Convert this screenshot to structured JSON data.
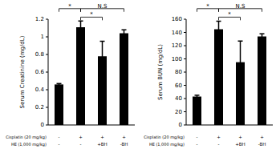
{
  "chart_data": [
    {
      "type": "bar",
      "ylabel": "Serum Creatinine (mg/dL)",
      "categories": [
        null,
        null,
        null,
        null
      ],
      "values": [
        0.46,
        1.11,
        0.78,
        1.04
      ],
      "errors": [
        0.01,
        0.07,
        0.17,
        0.04
      ],
      "color": "#000000",
      "ylim": [
        0,
        1.2
      ],
      "yticks": [
        0,
        0.2,
        0.4,
        0.6,
        0.8,
        1,
        1.2
      ],
      "treatments": [
        {
          "label": "Cisplatin (20 mg/kg)",
          "values": [
            "-",
            "+",
            "+",
            "+"
          ]
        },
        {
          "label": "HE (1,000 mg/kg)",
          "values": [
            "-",
            "-",
            "+BH",
            "-BH"
          ]
        }
      ],
      "comparisons": [
        {
          "from": 0,
          "to": 1,
          "label": "*"
        },
        {
          "from": 1,
          "to": 2,
          "label": "*"
        },
        {
          "from": 1,
          "to": 3,
          "label": "N.S"
        }
      ]
    },
    {
      "type": "bar",
      "ylabel": "Serum BUN (mg/dL)",
      "categories": [
        null,
        null,
        null,
        null
      ],
      "values": [
        43,
        145,
        95,
        134
      ],
      "errors": [
        2,
        12,
        32,
        4
      ],
      "color": "#000000",
      "ylim": [
        0,
        160
      ],
      "yticks": [
        0,
        20,
        40,
        60,
        80,
        100,
        120,
        140,
        160
      ],
      "treatments": [
        {
          "label": "Cisplatin (20 mg/kg)",
          "values": [
            "-",
            "+",
            "+",
            "+"
          ]
        },
        {
          "label": "HE (1,000 mg/kg)",
          "values": [
            "-",
            "-",
            "+BH",
            "-BH"
          ]
        }
      ],
      "comparisons": [
        {
          "from": 0,
          "to": 1,
          "label": "*"
        },
        {
          "from": 1,
          "to": 2,
          "label": "*"
        },
        {
          "from": 1,
          "to": 3,
          "label": "N.S"
        }
      ]
    }
  ]
}
